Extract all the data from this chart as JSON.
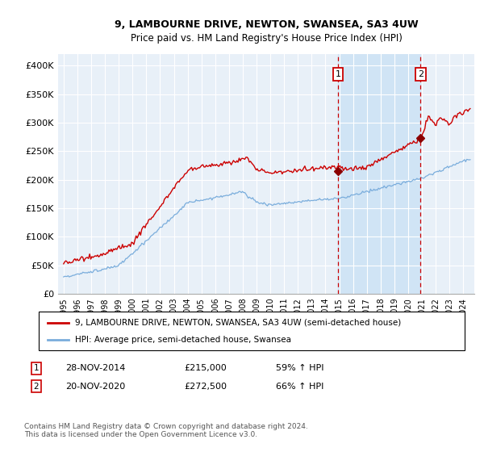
{
  "title": "9, LAMBOURNE DRIVE, NEWTON, SWANSEA, SA3 4UW",
  "subtitle": "Price paid vs. HM Land Registry's House Price Index (HPI)",
  "ylim": [
    0,
    420000
  ],
  "yticks": [
    0,
    50000,
    100000,
    150000,
    200000,
    250000,
    300000,
    350000,
    400000
  ],
  "ytick_labels": [
    "£0",
    "£50K",
    "£100K",
    "£150K",
    "£200K",
    "£250K",
    "£300K",
    "£350K",
    "£400K"
  ],
  "sale1_x": 2014.91,
  "sale1_y": 215000,
  "sale1_label": "1",
  "sale1_date": "28-NOV-2014",
  "sale1_price": "£215,000",
  "sale1_hpi": "59% ↑ HPI",
  "sale2_x": 2020.9,
  "sale2_y": 272500,
  "sale2_label": "2",
  "sale2_date": "20-NOV-2020",
  "sale2_price": "£272,500",
  "sale2_hpi": "66% ↑ HPI",
  "legend_line1": "9, LAMBOURNE DRIVE, NEWTON, SWANSEA, SA3 4UW (semi-detached house)",
  "legend_line2": "HPI: Average price, semi-detached house, Swansea",
  "footnote": "Contains HM Land Registry data © Crown copyright and database right 2024.\nThis data is licensed under the Open Government Licence v3.0.",
  "line_color_red": "#cc0000",
  "line_color_blue": "#7aaddc",
  "background_color": "#e8f0f8",
  "shade_color": "#d0e4f5",
  "grid_color": "#ffffff",
  "vline_color": "#cc0000",
  "xlim_left": 1994.6,
  "xlim_right": 2024.8
}
